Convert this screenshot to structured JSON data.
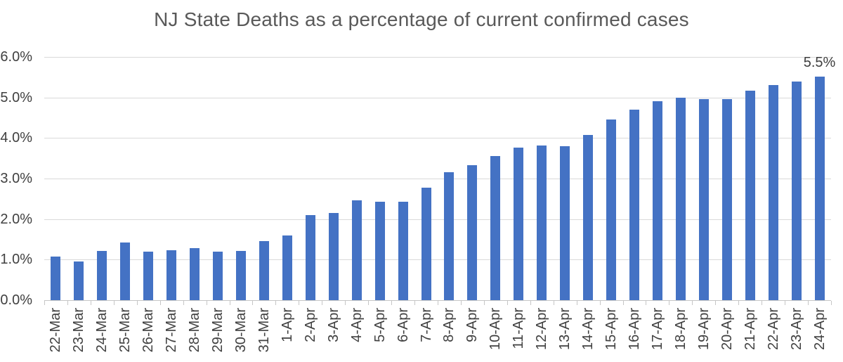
{
  "chart_data": {
    "type": "bar",
    "title": "NJ State Deaths as a percentage of current confirmed cases",
    "categories": [
      "22-Mar",
      "23-Mar",
      "24-Mar",
      "25-Mar",
      "26-Mar",
      "27-Mar",
      "28-Mar",
      "29-Mar",
      "30-Mar",
      "31-Mar",
      "1-Apr",
      "2-Apr",
      "3-Apr",
      "4-Apr",
      "5-Apr",
      "6-Apr",
      "7-Apr",
      "8-Apr",
      "9-Apr",
      "10-Apr",
      "11-Apr",
      "12-Apr",
      "13-Apr",
      "14-Apr",
      "15-Apr",
      "16-Apr",
      "17-Apr",
      "18-Apr",
      "19-Apr",
      "20-Apr",
      "21-Apr",
      "22-Apr",
      "23-Apr",
      "24-Apr"
    ],
    "values": [
      1.07,
      0.96,
      1.21,
      1.43,
      1.19,
      1.24,
      1.28,
      1.2,
      1.21,
      1.45,
      1.6,
      2.09,
      2.15,
      2.47,
      2.43,
      2.43,
      2.78,
      3.16,
      3.33,
      3.55,
      3.77,
      3.81,
      3.79,
      4.08,
      4.45,
      4.7,
      4.91,
      5.0,
      4.96,
      4.96,
      5.17,
      5.3,
      5.4,
      5.51
    ],
    "unit": "percent",
    "xlabel": "",
    "ylabel": "",
    "ylim": [
      0,
      6
    ],
    "ytick_step": 1,
    "ytick_labels": [
      "0.0%",
      "1.0%",
      "2.0%",
      "3.0%",
      "4.0%",
      "5.0%",
      "6.0%"
    ],
    "grid": true,
    "legend": "none",
    "x_label_rotation_deg": 90,
    "point_label": {
      "category": "24-Apr",
      "text": "5.5%"
    },
    "colors": {
      "bar": "#4472C4",
      "gridline": "#D9D9D9",
      "axis_line": "#C6C6C6",
      "title_text": "#595959",
      "axis_text": "#404040",
      "data_label_text": "#3D3D3D"
    }
  }
}
